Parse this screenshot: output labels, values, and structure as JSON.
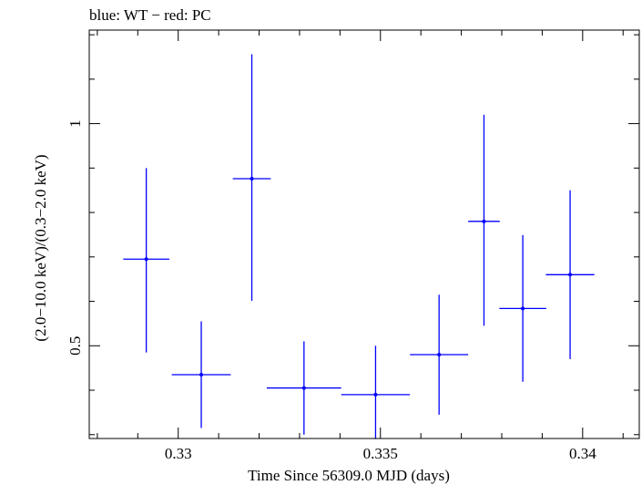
{
  "chart_data": {
    "type": "scatter",
    "title": "blue: WT − red: PC",
    "xlabel": "Time Since 56309.0 MJD (days)",
    "ylabel": "(2.0−10.0 keV)/(0.3−2.0 keV)",
    "xlim": [
      0.3278,
      0.3414
    ],
    "ylim": [
      0.2913,
      1.2105
    ],
    "x_ticks": [
      {
        "value": 0.33,
        "label": "0.33"
      },
      {
        "value": 0.335,
        "label": "0.335"
      },
      {
        "value": 0.34,
        "label": "0.34"
      }
    ],
    "y_ticks": [
      {
        "value": 0.5,
        "label": "0.5"
      },
      {
        "value": 1.0,
        "label": "1"
      }
    ],
    "series": [
      {
        "color": "#0000ff",
        "points": [
          {
            "x": 0.32921,
            "xerr": 0.00057,
            "y": 0.695,
            "yerr_low": 0.21,
            "yerr_high": 0.205
          },
          {
            "x": 0.33057,
            "xerr": 0.00073,
            "y": 0.435,
            "yerr_low": 0.12,
            "yerr_high": 0.12
          },
          {
            "x": 0.33182,
            "xerr": 0.00047,
            "y": 0.876,
            "yerr_low": 0.275,
            "yerr_high": 0.28
          },
          {
            "x": 0.33311,
            "xerr": 0.00092,
            "y": 0.405,
            "yerr_low": 0.105,
            "yerr_high": 0.105
          },
          {
            "x": 0.33488,
            "xerr": 0.00085,
            "y": 0.39,
            "yerr_low": 0.1,
            "yerr_high": 0.11
          },
          {
            "x": 0.33645,
            "xerr": 0.00072,
            "y": 0.48,
            "yerr_low": 0.135,
            "yerr_high": 0.135
          },
          {
            "x": 0.33756,
            "xerr": 0.00039,
            "y": 0.78,
            "yerr_low": 0.235,
            "yerr_high": 0.24
          },
          {
            "x": 0.33852,
            "xerr": 0.00058,
            "y": 0.584,
            "yerr_low": 0.165,
            "yerr_high": 0.165
          },
          {
            "x": 0.33969,
            "xerr": 0.0006,
            "y": 0.66,
            "yerr_low": 0.19,
            "yerr_high": 0.19
          }
        ]
      }
    ]
  }
}
